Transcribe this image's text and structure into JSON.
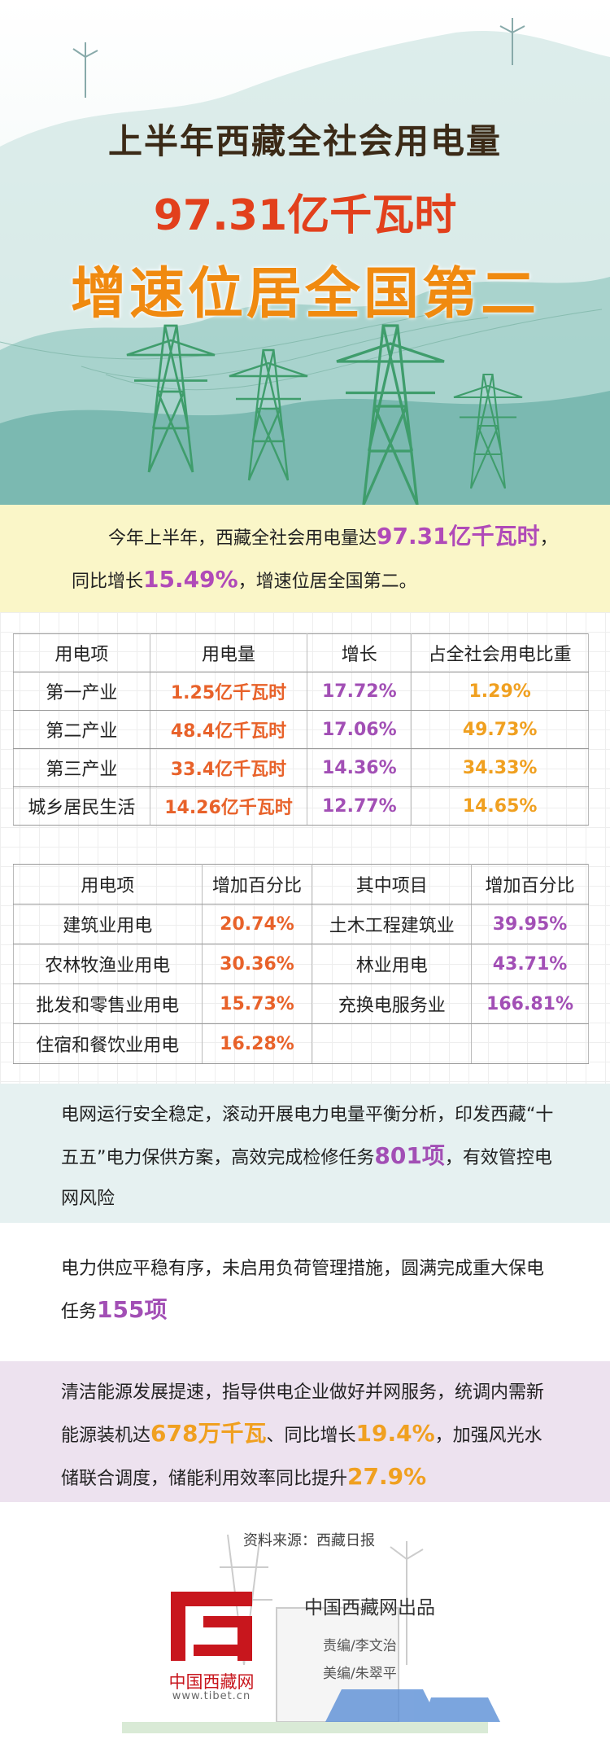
{
  "header": {
    "title": "上半年西藏全社会用电量",
    "figure": "97.31亿千瓦时",
    "headline": "增速位居全国第二"
  },
  "intro": [
    "今年上半年，西藏全社会用电量达",
    "97.31亿千瓦时",
    "，同比增长",
    "15.49%",
    "，增速位居全国第二。"
  ],
  "table1": {
    "header": [
      "用电项",
      "用电量",
      "增长",
      "占全社会用电比重"
    ],
    "rows": [
      [
        "第一产业",
        "1.25亿千瓦时",
        "17.72%",
        "1.29%"
      ],
      [
        "第二产业",
        "48.4亿千瓦时",
        "17.06%",
        "49.73%"
      ],
      [
        "第三产业",
        "33.4亿千瓦时",
        "14.36%",
        "34.33%"
      ],
      [
        "城乡居民生活",
        "14.26亿千瓦时",
        "12.77%",
        "14.65%"
      ]
    ]
  },
  "table2": {
    "header": [
      "用电项",
      "增加百分比",
      "其中项目",
      "增加百分比"
    ],
    "rows": [
      [
        "建筑业用电",
        "20.74%",
        "土木工程建筑业",
        "39.95%"
      ],
      [
        "农林牧渔业用电",
        "30.36%",
        "林业用电",
        "43.71%"
      ],
      [
        "批发和零售业用电",
        "15.73%",
        "充换电服务业",
        "166.81%"
      ],
      [
        "住宿和餐饮业用电",
        "16.28%"
      ]
    ]
  },
  "notes": [
    [
      "电网运行安全稳定，滚动开展电力电量平衡分析，印发西藏“十五五”电力保供方案，高效完成检修任务",
      "801项",
      "，有效管控电网风险"
    ],
    [
      "电力供应平稳有序，未启用负荷管理措施，圆满完成重大保电任务",
      "155项"
    ],
    [
      "清洁能源发展提速，指导供电企业做好并网服务，统调内需新能源装机达",
      "678万千瓦",
      "、同比增长",
      "19.4%",
      "，加强风光水储联合调度，储能利用效率同比提升",
      "27.9%"
    ]
  ],
  "footer": {
    "source": "资料来源：西藏日报",
    "producer": "中国西藏网出品",
    "editor": "责编/李文治",
    "designer": "美编/朱翠平",
    "logo_name": "中国西藏网",
    "logo_url": "www.tibet.cn"
  }
}
